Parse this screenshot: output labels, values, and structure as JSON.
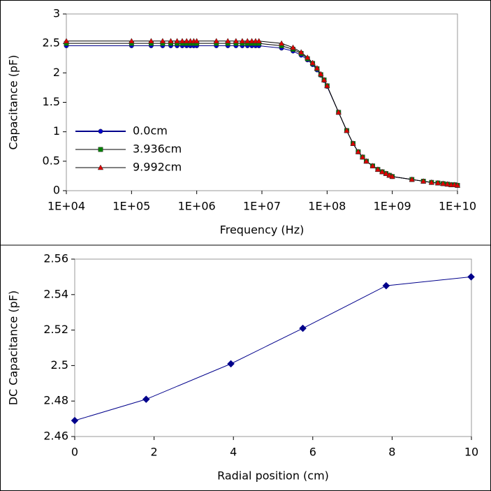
{
  "chart_data": [
    {
      "type": "line",
      "x_label": "Frequency (Hz)",
      "y_label": "Capacitance (pF)",
      "xlog": true,
      "x": [
        10000,
        100000,
        200000,
        300000,
        400000,
        500000,
        600000,
        700000,
        800000,
        900000,
        1000000,
        2000000,
        3000000,
        4000000,
        5000000,
        6000000,
        7000000,
        8000000,
        9000000,
        20000000,
        30000000,
        40000000,
        50000000,
        60000000,
        70000000,
        80000000,
        90000000,
        100000000,
        150000000,
        200000000,
        250000000,
        300000000,
        350000000,
        400000000,
        500000000,
        600000000,
        700000000,
        800000000,
        900000000,
        1000000000,
        2000000000,
        3000000000,
        4000000000,
        5000000000,
        6000000000,
        7000000000,
        8000000000,
        9000000000,
        10000000000
      ],
      "series": [
        {
          "name": "0.0cm",
          "color": "#0000cc",
          "line_color": "#00008b",
          "marker": "circle",
          "values": [
            2.46,
            2.46,
            2.46,
            2.46,
            2.46,
            2.46,
            2.46,
            2.46,
            2.46,
            2.46,
            2.46,
            2.46,
            2.46,
            2.46,
            2.46,
            2.46,
            2.46,
            2.46,
            2.46,
            2.42,
            2.37,
            2.3,
            2.22,
            2.14,
            2.05,
            1.96,
            1.87,
            1.77,
            1.33,
            1.02,
            0.8,
            0.66,
            0.57,
            0.5,
            0.42,
            0.36,
            0.32,
            0.29,
            0.26,
            0.24,
            0.19,
            0.16,
            0.14,
            0.13,
            0.12,
            0.11,
            0.1,
            0.1,
            0.09
          ]
        },
        {
          "name": "3.936cm",
          "color": "#008000",
          "line_color": "#000000",
          "marker": "square",
          "values": [
            2.5,
            2.5,
            2.5,
            2.5,
            2.5,
            2.5,
            2.5,
            2.5,
            2.5,
            2.5,
            2.5,
            2.5,
            2.5,
            2.5,
            2.5,
            2.5,
            2.5,
            2.5,
            2.5,
            2.46,
            2.4,
            2.33,
            2.24,
            2.16,
            2.07,
            1.97,
            1.88,
            1.78,
            1.33,
            1.02,
            0.8,
            0.66,
            0.57,
            0.5,
            0.42,
            0.36,
            0.32,
            0.29,
            0.26,
            0.24,
            0.19,
            0.16,
            0.14,
            0.13,
            0.12,
            0.11,
            0.1,
            0.1,
            0.09
          ]
        },
        {
          "name": "9.992cm",
          "color": "#dd0000",
          "line_color": "#000000",
          "marker": "triangle",
          "values": [
            2.54,
            2.54,
            2.54,
            2.54,
            2.54,
            2.54,
            2.54,
            2.54,
            2.54,
            2.54,
            2.54,
            2.54,
            2.54,
            2.54,
            2.54,
            2.54,
            2.54,
            2.54,
            2.54,
            2.5,
            2.43,
            2.35,
            2.26,
            2.17,
            2.08,
            1.98,
            1.88,
            1.78,
            1.33,
            1.02,
            0.8,
            0.66,
            0.57,
            0.5,
            0.42,
            0.36,
            0.32,
            0.29,
            0.26,
            0.24,
            0.19,
            0.16,
            0.14,
            0.13,
            0.12,
            0.11,
            0.1,
            0.1,
            0.09
          ]
        }
      ],
      "xlim": [
        10000,
        10000000000
      ],
      "xticks": [
        {
          "value": 10000,
          "label": "1E+04"
        },
        {
          "value": 100000,
          "label": "1E+05"
        },
        {
          "value": 1000000,
          "label": "1E+06"
        },
        {
          "value": 10000000,
          "label": "1E+07"
        },
        {
          "value": 100000000,
          "label": "1E+08"
        },
        {
          "value": 1000000000,
          "label": "1E+09"
        },
        {
          "value": 10000000000,
          "label": "1E+10"
        }
      ],
      "ylim": [
        0,
        3
      ],
      "yticks": [
        0,
        0.5,
        1,
        1.5,
        2,
        2.5,
        3
      ],
      "legend": "lower-left"
    },
    {
      "type": "line",
      "x_label": "Radial position (cm)",
      "y_label": "DC Capacitance (pF)",
      "x": [
        0,
        1.8,
        3.936,
        5.75,
        7.85,
        9.992
      ],
      "values": [
        2.469,
        2.481,
        2.501,
        2.521,
        2.545,
        2.55
      ],
      "color": "#00008b",
      "line_color": "#00008b",
      "marker": "diamond",
      "xlim": [
        0,
        10
      ],
      "xticks": [
        0,
        2,
        4,
        6,
        8,
        10
      ],
      "ylim": [
        2.46,
        2.56
      ],
      "yticks": [
        2.46,
        2.48,
        2.5,
        2.52,
        2.54,
        2.56
      ]
    }
  ]
}
